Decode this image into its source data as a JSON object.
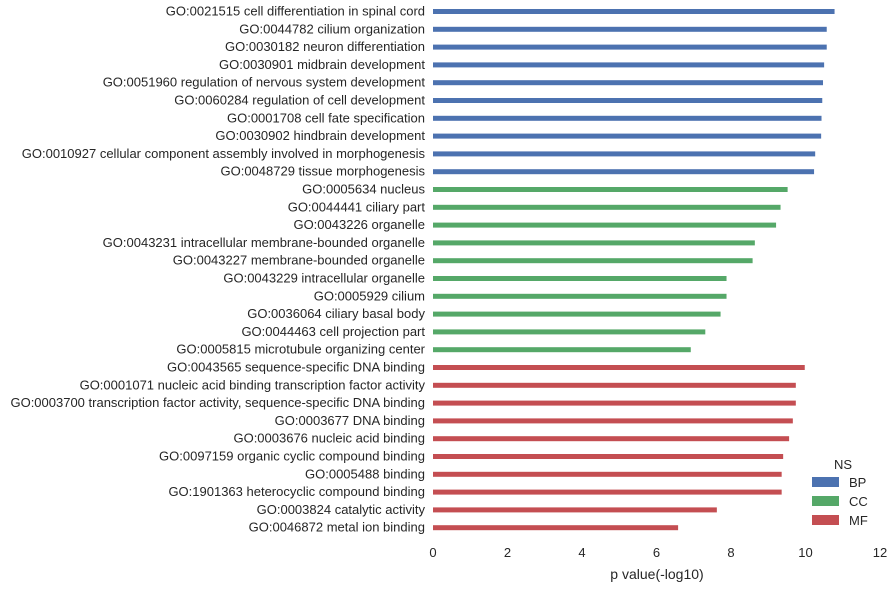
{
  "chart_data": {
    "type": "bar",
    "orientation": "horizontal",
    "title": "",
    "xlabel": "p value(-log10)",
    "ylabel": "",
    "xlim": [
      0,
      12
    ],
    "xticks": [
      0,
      2,
      4,
      6,
      8,
      10,
      12
    ],
    "grid": false,
    "legend": {
      "title": "NS",
      "placement": "lower-right",
      "entries": [
        {
          "name": "BP",
          "color": "#4c72b0"
        },
        {
          "name": "CC",
          "color": "#55a868"
        },
        {
          "name": "MF",
          "color": "#c44e52"
        }
      ]
    },
    "categories": [
      "GO:0021515 cell differentiation in spinal cord",
      "GO:0044782 cilium organization",
      "GO:0030182 neuron differentiation",
      "GO:0030901 midbrain development",
      "GO:0051960 regulation of nervous system development",
      "GO:0060284 regulation of cell development",
      "GO:0001708 cell fate specification",
      "GO:0030902 hindbrain development",
      "GO:0010927 cellular component assembly involved in morphogenesis",
      "GO:0048729 tissue morphogenesis",
      "GO:0005634 nucleus",
      "GO:0044441 ciliary part",
      "GO:0043226 organelle",
      "GO:0043231 intracellular membrane-bounded organelle",
      "GO:0043227 membrane-bounded organelle",
      "GO:0043229 intracellular organelle",
      "GO:0005929 cilium",
      "GO:0036064 ciliary basal body",
      "GO:0044463 cell projection part",
      "GO:0005815 microtubule organizing center",
      "GO:0043565 sequence-specific DNA binding",
      "GO:0001071 nucleic acid binding transcription factor activity",
      "GO:0003700 transcription factor activity, sequence-specific DNA binding",
      "GO:0003677 DNA binding",
      "GO:0003676 nucleic acid binding",
      "GO:0097159 organic cyclic compound binding",
      "GO:0005488 binding",
      "GO:1901363 heterocyclic compound binding",
      "GO:0003824 catalytic activity",
      "GO:0046872 metal ion binding"
    ],
    "values": [
      10.78,
      10.57,
      10.57,
      10.5,
      10.47,
      10.45,
      10.43,
      10.42,
      10.26,
      10.23,
      9.52,
      9.33,
      9.21,
      8.64,
      8.58,
      7.88,
      7.88,
      7.72,
      7.31,
      6.92,
      9.98,
      9.74,
      9.74,
      9.66,
      9.56,
      9.4,
      9.36,
      9.36,
      7.62,
      6.58
    ],
    "groups": [
      "BP",
      "BP",
      "BP",
      "BP",
      "BP",
      "BP",
      "BP",
      "BP",
      "BP",
      "BP",
      "CC",
      "CC",
      "CC",
      "CC",
      "CC",
      "CC",
      "CC",
      "CC",
      "CC",
      "CC",
      "MF",
      "MF",
      "MF",
      "MF",
      "MF",
      "MF",
      "MF",
      "MF",
      "MF",
      "MF"
    ]
  }
}
